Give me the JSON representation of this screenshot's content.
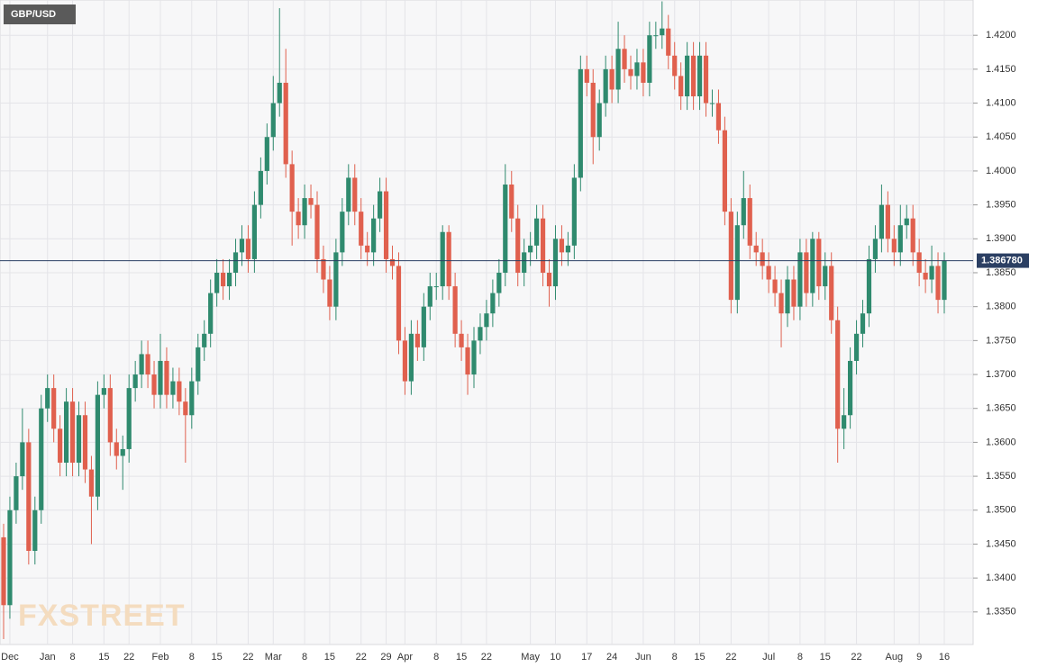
{
  "chart_data": {
    "type": "candlestick",
    "title": "GBP/USD",
    "watermark": "FXSTREET",
    "up_color": "#2f8a6e",
    "down_color": "#e0604e",
    "grid": true,
    "last_price": {
      "value": 1.38678,
      "label": "1.386780"
    },
    "ylim": [
      1.3302,
      1.4252
    ],
    "yticks": [
      {
        "value": 1.335,
        "label": "1.3350"
      },
      {
        "value": 1.34,
        "label": "1.3400"
      },
      {
        "value": 1.345,
        "label": "1.3450"
      },
      {
        "value": 1.35,
        "label": "1.3500"
      },
      {
        "value": 1.355,
        "label": "1.3550"
      },
      {
        "value": 1.36,
        "label": "1.3600"
      },
      {
        "value": 1.365,
        "label": "1.3650"
      },
      {
        "value": 1.37,
        "label": "1.3700"
      },
      {
        "value": 1.375,
        "label": "1.3750"
      },
      {
        "value": 1.38,
        "label": "1.3800"
      },
      {
        "value": 1.385,
        "label": "1.3850"
      },
      {
        "value": 1.39,
        "label": "1.3900"
      },
      {
        "value": 1.395,
        "label": "1.3950"
      },
      {
        "value": 1.4,
        "label": "1.4000"
      },
      {
        "value": 1.405,
        "label": "1.4050"
      },
      {
        "value": 1.41,
        "label": "1.4100"
      },
      {
        "value": 1.415,
        "label": "1.4150"
      },
      {
        "value": 1.42,
        "label": "1.4200"
      }
    ],
    "categories": [
      null,
      "Dec",
      null,
      null,
      null,
      null,
      null,
      "Jan",
      null,
      null,
      null,
      "8",
      null,
      null,
      null,
      null,
      "15",
      null,
      null,
      null,
      "22",
      null,
      null,
      null,
      null,
      "Feb",
      null,
      null,
      null,
      null,
      "8",
      null,
      null,
      null,
      "15",
      null,
      null,
      null,
      null,
      "22",
      null,
      null,
      null,
      "Mar",
      null,
      null,
      null,
      null,
      "8",
      null,
      null,
      null,
      "15",
      null,
      null,
      null,
      null,
      "22",
      null,
      null,
      null,
      "29",
      null,
      null,
      "Apr",
      null,
      null,
      null,
      null,
      "8",
      null,
      null,
      null,
      "15",
      null,
      null,
      null,
      "22",
      null,
      null,
      null,
      null,
      null,
      null,
      "May",
      null,
      null,
      null,
      "10",
      null,
      null,
      null,
      null,
      "17",
      null,
      null,
      null,
      "24",
      null,
      null,
      null,
      null,
      "Jun",
      null,
      null,
      null,
      null,
      "8",
      null,
      null,
      null,
      "15",
      null,
      null,
      null,
      null,
      "22",
      null,
      null,
      null,
      null,
      null,
      "Jul",
      null,
      null,
      null,
      null,
      "8",
      null,
      null,
      null,
      "15",
      null,
      null,
      null,
      null,
      "22",
      null,
      null,
      null,
      null,
      null,
      "Aug",
      null,
      null,
      null,
      "9",
      null,
      null,
      null,
      "16"
    ],
    "values": [
      [
        1.346,
        1.348,
        1.331,
        1.336
      ],
      [
        1.336,
        1.352,
        1.334,
        1.35
      ],
      [
        1.35,
        1.357,
        1.348,
        1.355
      ],
      [
        1.355,
        1.365,
        1.353,
        1.36
      ],
      [
        1.36,
        1.362,
        1.342,
        1.344
      ],
      [
        1.344,
        1.352,
        1.342,
        1.35
      ],
      [
        1.35,
        1.367,
        1.348,
        1.365
      ],
      [
        1.365,
        1.37,
        1.363,
        1.368
      ],
      [
        1.368,
        1.37,
        1.36,
        1.362
      ],
      [
        1.362,
        1.364,
        1.355,
        1.357
      ],
      [
        1.357,
        1.368,
        1.355,
        1.366
      ],
      [
        1.366,
        1.368,
        1.355,
        1.357
      ],
      [
        1.357,
        1.366,
        1.355,
        1.364
      ],
      [
        1.364,
        1.366,
        1.354,
        1.356
      ],
      [
        1.356,
        1.358,
        1.345,
        1.352
      ],
      [
        1.352,
        1.369,
        1.35,
        1.367
      ],
      [
        1.367,
        1.37,
        1.365,
        1.368
      ],
      [
        1.368,
        1.37,
        1.358,
        1.36
      ],
      [
        1.36,
        1.362,
        1.356,
        1.358
      ],
      [
        1.358,
        1.361,
        1.353,
        1.359
      ],
      [
        1.359,
        1.37,
        1.357,
        1.368
      ],
      [
        1.368,
        1.372,
        1.366,
        1.37
      ],
      [
        1.37,
        1.375,
        1.368,
        1.373
      ],
      [
        1.373,
        1.375,
        1.368,
        1.37
      ],
      [
        1.37,
        1.372,
        1.365,
        1.367
      ],
      [
        1.367,
        1.376,
        1.365,
        1.372
      ],
      [
        1.372,
        1.374,
        1.365,
        1.367
      ],
      [
        1.367,
        1.371,
        1.365,
        1.369
      ],
      [
        1.369,
        1.371,
        1.364,
        1.366
      ],
      [
        1.366,
        1.368,
        1.357,
        1.364
      ],
      [
        1.364,
        1.371,
        1.362,
        1.369
      ],
      [
        1.369,
        1.376,
        1.367,
        1.374
      ],
      [
        1.374,
        1.378,
        1.372,
        1.376
      ],
      [
        1.376,
        1.384,
        1.374,
        1.382
      ],
      [
        1.382,
        1.387,
        1.38,
        1.385
      ],
      [
        1.385,
        1.387,
        1.381,
        1.383
      ],
      [
        1.383,
        1.387,
        1.381,
        1.385
      ],
      [
        1.385,
        1.39,
        1.383,
        1.388
      ],
      [
        1.388,
        1.392,
        1.386,
        1.39
      ],
      [
        1.39,
        1.392,
        1.385,
        1.387
      ],
      [
        1.387,
        1.397,
        1.385,
        1.395
      ],
      [
        1.395,
        1.402,
        1.393,
        1.4
      ],
      [
        1.4,
        1.407,
        1.398,
        1.405
      ],
      [
        1.405,
        1.414,
        1.403,
        1.41
      ],
      [
        1.41,
        1.424,
        1.408,
        1.413
      ],
      [
        1.413,
        1.418,
        1.399,
        1.401
      ],
      [
        1.401,
        1.403,
        1.389,
        1.394
      ],
      [
        1.394,
        1.396,
        1.39,
        1.392
      ],
      [
        1.392,
        1.398,
        1.39,
        1.396
      ],
      [
        1.396,
        1.398,
        1.393,
        1.395
      ],
      [
        1.395,
        1.397,
        1.385,
        1.387
      ],
      [
        1.387,
        1.389,
        1.382,
        1.384
      ],
      [
        1.384,
        1.386,
        1.378,
        1.38
      ],
      [
        1.38,
        1.39,
        1.378,
        1.388
      ],
      [
        1.388,
        1.396,
        1.386,
        1.394
      ],
      [
        1.394,
        1.401,
        1.392,
        1.399
      ],
      [
        1.399,
        1.401,
        1.392,
        1.394
      ],
      [
        1.394,
        1.396,
        1.387,
        1.389
      ],
      [
        1.389,
        1.391,
        1.386,
        1.388
      ],
      [
        1.388,
        1.395,
        1.386,
        1.393
      ],
      [
        1.393,
        1.399,
        1.391,
        1.397
      ],
      [
        1.397,
        1.399,
        1.385,
        1.387
      ],
      [
        1.387,
        1.389,
        1.384,
        1.386
      ],
      [
        1.386,
        1.388,
        1.373,
        1.375
      ],
      [
        1.375,
        1.377,
        1.367,
        1.369
      ],
      [
        1.369,
        1.378,
        1.367,
        1.376
      ],
      [
        1.376,
        1.378,
        1.372,
        1.374
      ],
      [
        1.374,
        1.382,
        1.372,
        1.38
      ],
      [
        1.38,
        1.385,
        1.378,
        1.383
      ],
      [
        1.383,
        1.385,
        1.381,
        1.383
      ],
      [
        1.383,
        1.392,
        1.381,
        1.391
      ],
      [
        1.391,
        1.392,
        1.381,
        1.383
      ],
      [
        1.383,
        1.385,
        1.374,
        1.376
      ],
      [
        1.376,
        1.378,
        1.372,
        1.374
      ],
      [
        1.374,
        1.376,
        1.367,
        1.37
      ],
      [
        1.37,
        1.377,
        1.368,
        1.375
      ],
      [
        1.375,
        1.379,
        1.373,
        1.377
      ],
      [
        1.377,
        1.381,
        1.375,
        1.379
      ],
      [
        1.379,
        1.384,
        1.377,
        1.382
      ],
      [
        1.382,
        1.387,
        1.38,
        1.385
      ],
      [
        1.385,
        1.401,
        1.383,
        1.398
      ],
      [
        1.398,
        1.4,
        1.391,
        1.393
      ],
      [
        1.393,
        1.395,
        1.383,
        1.385
      ],
      [
        1.385,
        1.39,
        1.383,
        1.388
      ],
      [
        1.388,
        1.391,
        1.386,
        1.389
      ],
      [
        1.389,
        1.395,
        1.387,
        1.393
      ],
      [
        1.393,
        1.395,
        1.383,
        1.385
      ],
      [
        1.385,
        1.387,
        1.38,
        1.383
      ],
      [
        1.383,
        1.392,
        1.381,
        1.39
      ],
      [
        1.39,
        1.392,
        1.386,
        1.388
      ],
      [
        1.388,
        1.391,
        1.386,
        1.389
      ],
      [
        1.389,
        1.401,
        1.387,
        1.399
      ],
      [
        1.399,
        1.417,
        1.397,
        1.415
      ],
      [
        1.415,
        1.417,
        1.411,
        1.413
      ],
      [
        1.413,
        1.415,
        1.401,
        1.405
      ],
      [
        1.405,
        1.412,
        1.403,
        1.41
      ],
      [
        1.41,
        1.417,
        1.408,
        1.415
      ],
      [
        1.415,
        1.417,
        1.41,
        1.412
      ],
      [
        1.412,
        1.422,
        1.41,
        1.418
      ],
      [
        1.418,
        1.42,
        1.413,
        1.415
      ],
      [
        1.415,
        1.417,
        1.412,
        1.414
      ],
      [
        1.414,
        1.418,
        1.412,
        1.416
      ],
      [
        1.416,
        1.418,
        1.411,
        1.413
      ],
      [
        1.413,
        1.422,
        1.411,
        1.42
      ],
      [
        1.42,
        1.422,
        1.418,
        1.42
      ],
      [
        1.42,
        1.425,
        1.418,
        1.421
      ],
      [
        1.421,
        1.423,
        1.415,
        1.417
      ],
      [
        1.417,
        1.419,
        1.412,
        1.414
      ],
      [
        1.414,
        1.416,
        1.409,
        1.411
      ],
      [
        1.411,
        1.419,
        1.409,
        1.417
      ],
      [
        1.417,
        1.419,
        1.409,
        1.411
      ],
      [
        1.411,
        1.419,
        1.409,
        1.417
      ],
      [
        1.417,
        1.419,
        1.408,
        1.41
      ],
      [
        1.41,
        1.412,
        1.408,
        1.41
      ],
      [
        1.41,
        1.412,
        1.404,
        1.406
      ],
      [
        1.406,
        1.408,
        1.392,
        1.394
      ],
      [
        1.394,
        1.396,
        1.379,
        1.381
      ],
      [
        1.381,
        1.394,
        1.379,
        1.392
      ],
      [
        1.392,
        1.4,
        1.39,
        1.396
      ],
      [
        1.396,
        1.398,
        1.387,
        1.389
      ],
      [
        1.389,
        1.391,
        1.386,
        1.388
      ],
      [
        1.388,
        1.39,
        1.384,
        1.386
      ],
      [
        1.386,
        1.388,
        1.382,
        1.384
      ],
      [
        1.384,
        1.386,
        1.38,
        1.382
      ],
      [
        1.382,
        1.384,
        1.374,
        1.379
      ],
      [
        1.379,
        1.386,
        1.377,
        1.384
      ],
      [
        1.384,
        1.386,
        1.378,
        1.38
      ],
      [
        1.38,
        1.39,
        1.378,
        1.388
      ],
      [
        1.388,
        1.39,
        1.38,
        1.382
      ],
      [
        1.382,
        1.391,
        1.38,
        1.39
      ],
      [
        1.39,
        1.391,
        1.381,
        1.383
      ],
      [
        1.383,
        1.388,
        1.381,
        1.386
      ],
      [
        1.386,
        1.388,
        1.376,
        1.378
      ],
      [
        1.378,
        1.38,
        1.357,
        1.362
      ],
      [
        1.362,
        1.368,
        1.359,
        1.364
      ],
      [
        1.364,
        1.374,
        1.362,
        1.372
      ],
      [
        1.372,
        1.378,
        1.37,
        1.376
      ],
      [
        1.376,
        1.381,
        1.374,
        1.379
      ],
      [
        1.379,
        1.389,
        1.377,
        1.387
      ],
      [
        1.387,
        1.392,
        1.385,
        1.39
      ],
      [
        1.39,
        1.398,
        1.388,
        1.395
      ],
      [
        1.395,
        1.397,
        1.388,
        1.39
      ],
      [
        1.39,
        1.392,
        1.386,
        1.388
      ],
      [
        1.388,
        1.395,
        1.386,
        1.392
      ],
      [
        1.392,
        1.395,
        1.39,
        1.393
      ],
      [
        1.393,
        1.395,
        1.386,
        1.388
      ],
      [
        1.388,
        1.39,
        1.383,
        1.385
      ],
      [
        1.385,
        1.387,
        1.382,
        1.384
      ],
      [
        1.384,
        1.389,
        1.382,
        1.386
      ],
      [
        1.386,
        1.388,
        1.379,
        1.381
      ],
      [
        1.381,
        1.388,
        1.379,
        1.3868
      ]
    ]
  }
}
